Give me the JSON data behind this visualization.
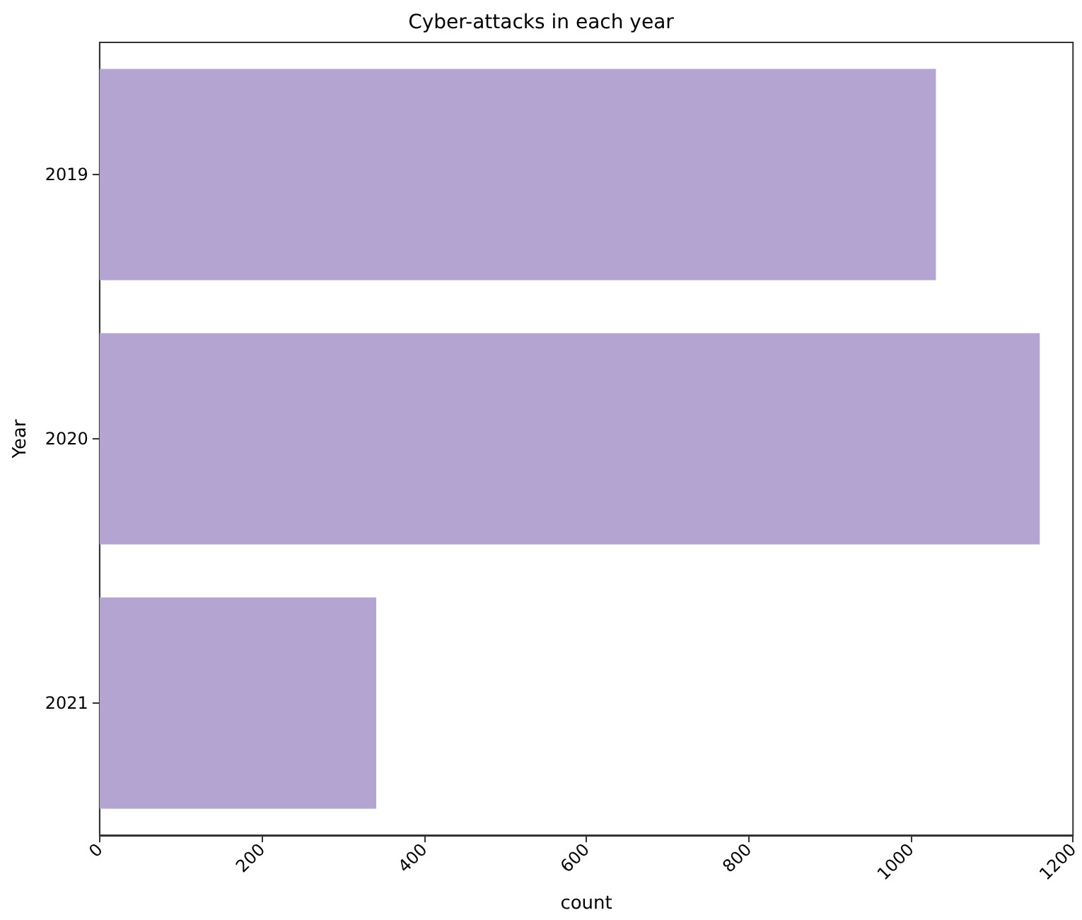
{
  "chart_data": {
    "type": "bar",
    "orientation": "horizontal",
    "title": "Cyber-attacks in each year",
    "xlabel": "count",
    "ylabel": "Year",
    "categories": [
      "2019",
      "2020",
      "2021"
    ],
    "values": [
      1031,
      1159,
      341
    ],
    "color": "#b3a4d1",
    "xlim": [
      0,
      1200
    ],
    "xticks": [
      0,
      200,
      400,
      600,
      800,
      1000,
      1200
    ],
    "grid": false
  }
}
